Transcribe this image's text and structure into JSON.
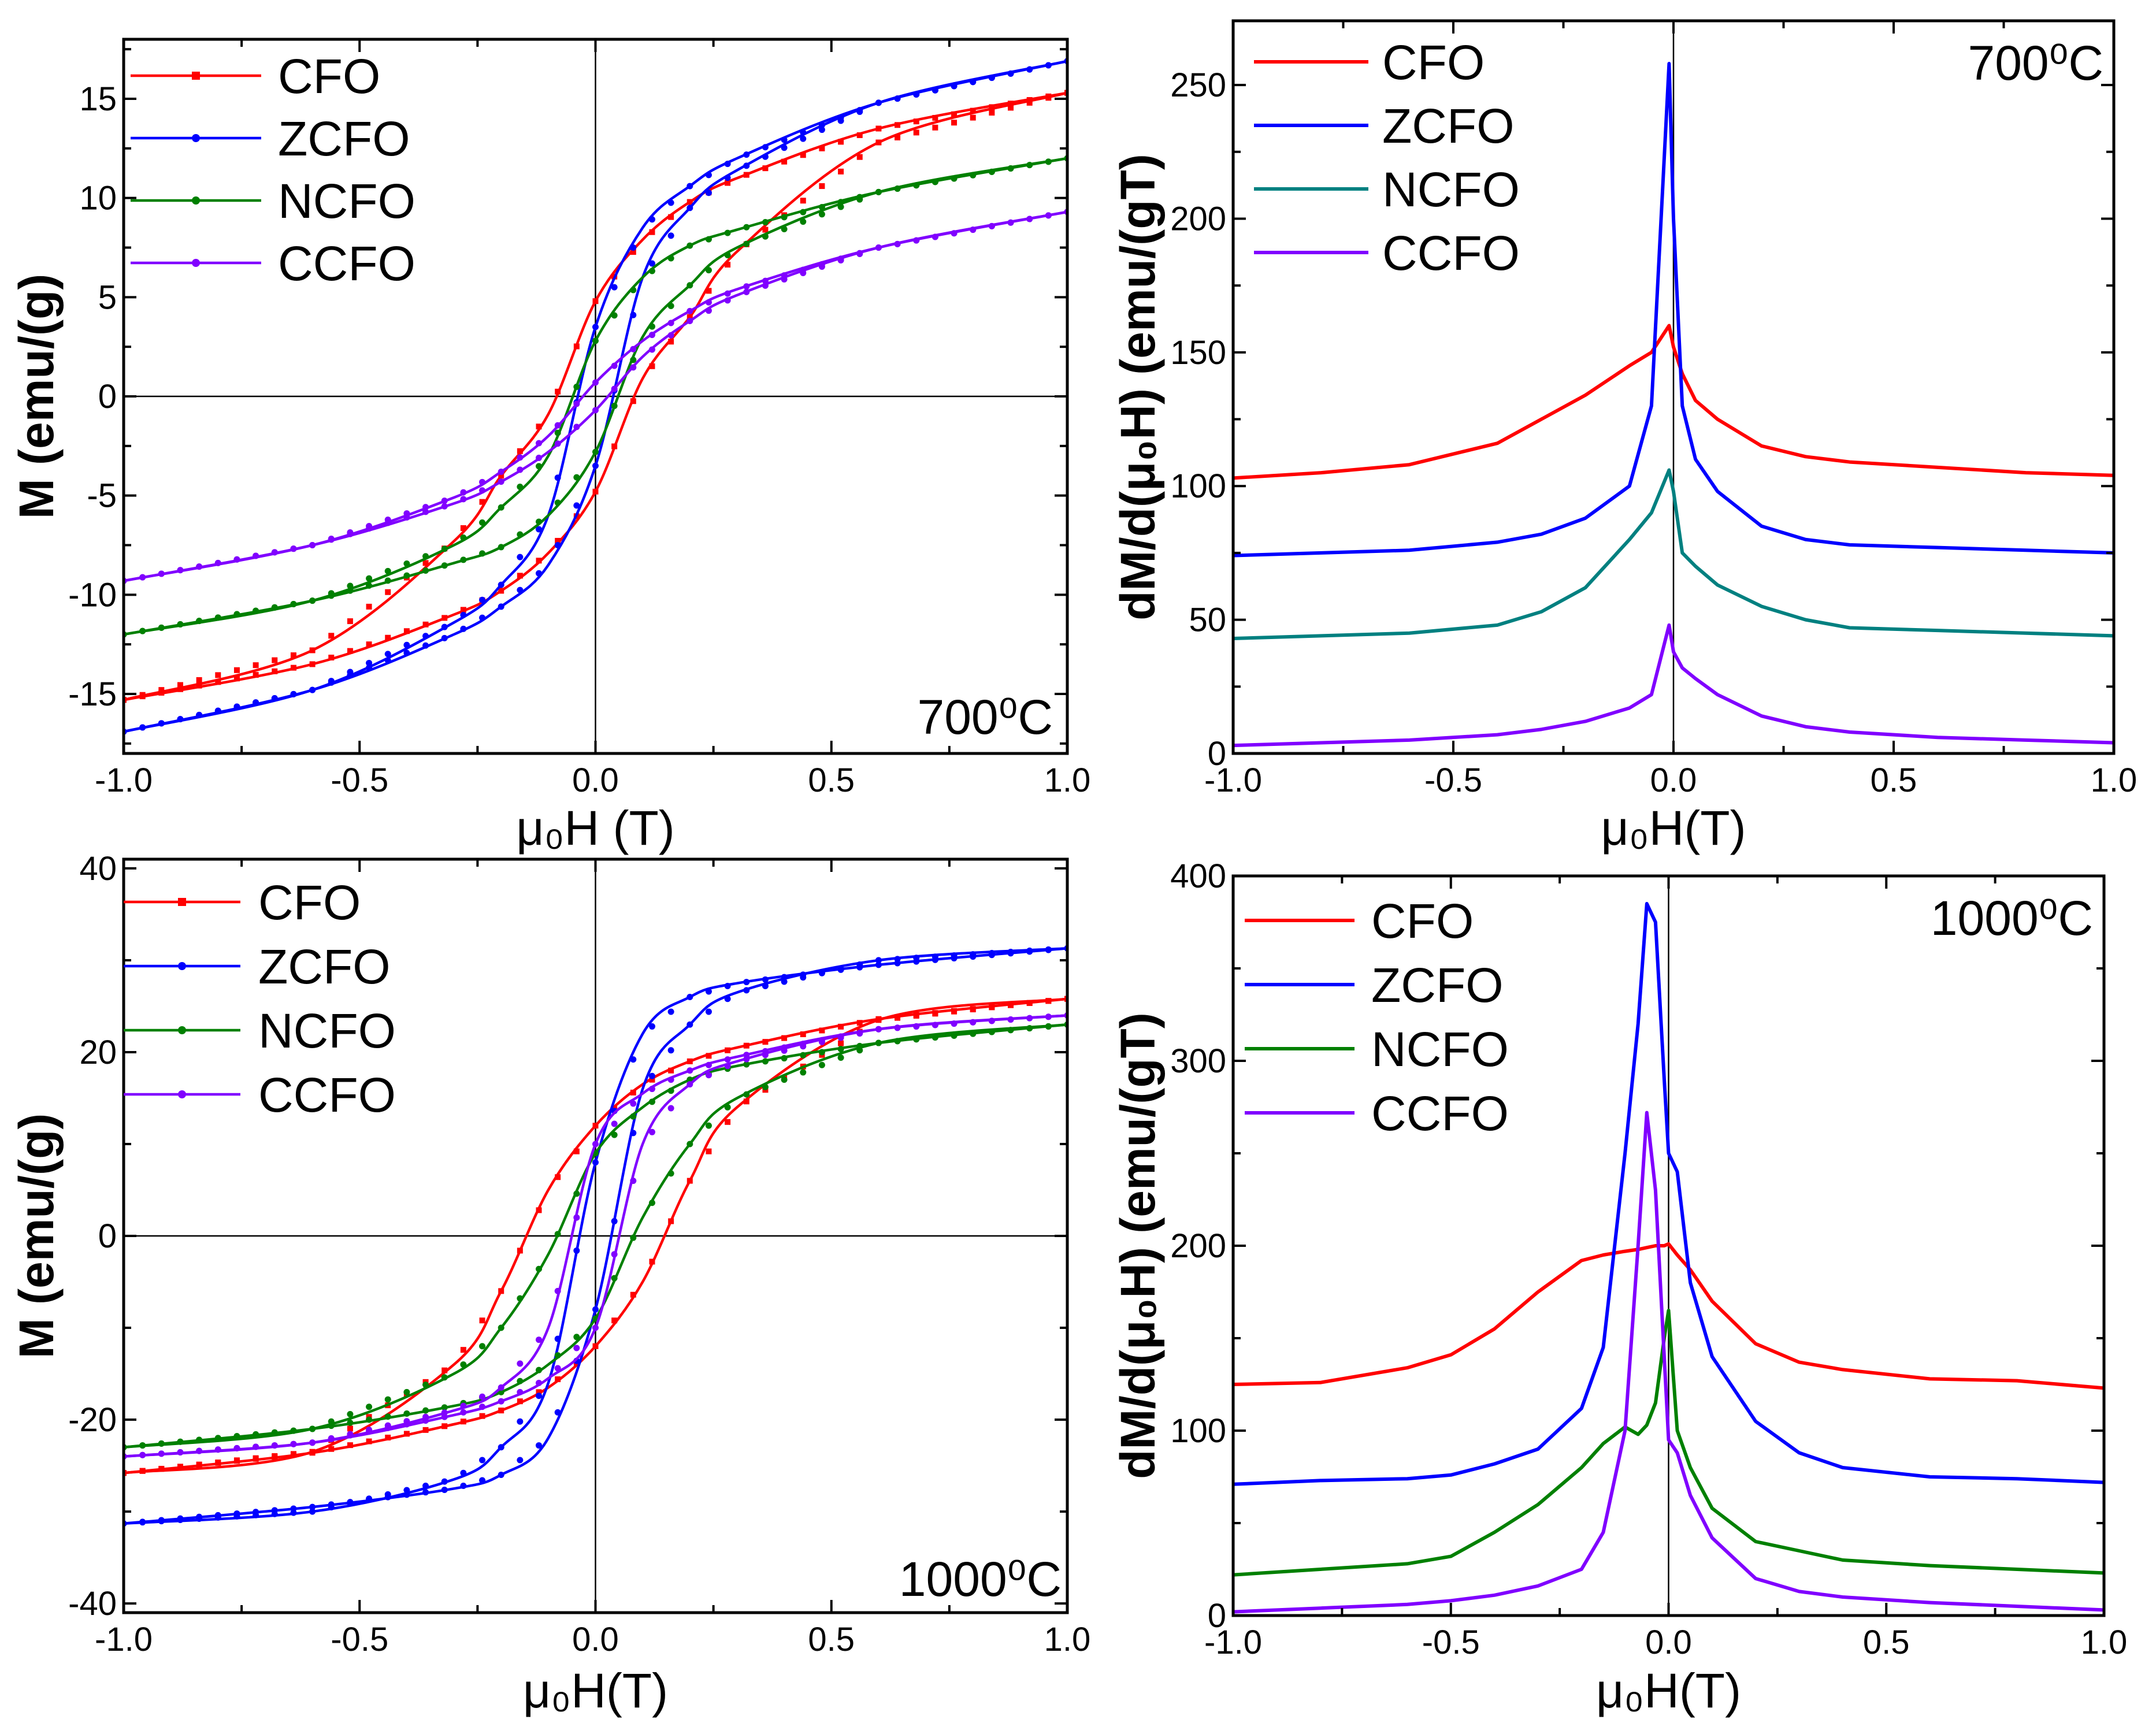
{
  "chart_data": [
    {
      "type": "line",
      "panel": "top-left",
      "kind": "hysteresis",
      "annotation": "700⁰C",
      "xlabel": "μ₀H (T)",
      "ylabel": "M (emu/(g)",
      "xlim": [
        -1.0,
        1.0
      ],
      "ylim": [
        -18,
        18
      ],
      "xticks": [
        -1.0,
        -0.5,
        0.0,
        0.5,
        1.0
      ],
      "xtick_labels": [
        "-1.0",
        "-0.5",
        "0.0",
        "0.5",
        "1.0"
      ],
      "yticks": [
        -15,
        -10,
        -5,
        0,
        5,
        10,
        15
      ],
      "ytick_labels": [
        "-15",
        "-10",
        "-5",
        "0",
        "5",
        "10",
        "15"
      ],
      "legend_position": "top-left",
      "x": [
        -1,
        -0.6,
        -0.3,
        -0.2,
        -0.1,
        0,
        0.1,
        0.2,
        0.3,
        0.6,
        1
      ],
      "branch_note": "descending branch values; ascending branch is the symmetric inverse",
      "series": [
        {
          "name": "CFO",
          "color": "#ff0000",
          "marker": "square",
          "values": [
            -15.3,
            -12.8,
            -7.3,
            -4.0,
            -0.9,
            4.8,
            7.9,
            9.8,
            11.0,
            13.5,
            15.3
          ]
        },
        {
          "name": "ZCFO",
          "color": "#0000ff",
          "marker": "circle",
          "values": [
            -16.9,
            -14.8,
            -11.4,
            -9.5,
            -6.0,
            3.5,
            8.5,
            10.6,
            12.0,
            14.8,
            16.9
          ]
        },
        {
          "name": "NCFO",
          "color": "#008000",
          "marker": "circle",
          "values": [
            -12.0,
            -10.3,
            -7.5,
            -5.6,
            -3.0,
            2.8,
            6.0,
            7.6,
            8.4,
            10.3,
            12.0
          ]
        },
        {
          "name": "CCFO",
          "color": "#8000ff",
          "marker": "circle",
          "values": [
            -9.3,
            -7.5,
            -5.1,
            -3.8,
            -2.0,
            0.7,
            2.8,
            4.3,
            5.4,
            7.5,
            9.3
          ]
        }
      ]
    },
    {
      "type": "line",
      "panel": "top-right",
      "kind": "derivative",
      "annotation": "700⁰C",
      "xlabel": "μ₀H(T)",
      "ylabel": "dM/d(μ₀H) (emu/(gT)",
      "xlim": [
        -1.0,
        1.0
      ],
      "ylim": [
        0,
        274
      ],
      "xticks": [
        -1.0,
        -0.5,
        0.0,
        0.5,
        1.0
      ],
      "xtick_labels": [
        "-1.0",
        "-0.5",
        "0.0",
        "0.5",
        "1.0"
      ],
      "yticks": [
        0,
        50,
        100,
        150,
        200,
        250
      ],
      "ytick_labels": [
        "0",
        "50",
        "100",
        "150",
        "200",
        "250"
      ],
      "legend_position": "top-left",
      "x": [
        -1,
        -0.8,
        -0.6,
        -0.4,
        -0.3,
        -0.2,
        -0.1,
        -0.05,
        -0.01,
        0,
        0.02,
        0.05,
        0.1,
        0.2,
        0.3,
        0.4,
        0.6,
        0.8,
        1
      ],
      "series": [
        {
          "name": "CFO",
          "color": "#ff0000",
          "values": [
            103,
            105,
            108,
            116,
            125,
            134,
            145,
            150,
            160,
            152,
            142,
            132,
            125,
            115,
            111,
            109,
            107,
            105,
            104
          ]
        },
        {
          "name": "ZCFO",
          "color": "#0000ff",
          "values": [
            74,
            75,
            76,
            79,
            82,
            88,
            100,
            130,
            258,
            200,
            130,
            110,
            98,
            85,
            80,
            78,
            77,
            76,
            75
          ]
        },
        {
          "name": "NCFO",
          "color": "#008080",
          "values": [
            43,
            44,
            45,
            48,
            53,
            62,
            80,
            90,
            106,
            98,
            75,
            70,
            63,
            55,
            50,
            47,
            46,
            45,
            44
          ]
        },
        {
          "name": "CCFO",
          "color": "#8000ff",
          "values": [
            3,
            4,
            5,
            7,
            9,
            12,
            17,
            22,
            48,
            38,
            32,
            28,
            22,
            14,
            10,
            8,
            6,
            5,
            4
          ]
        }
      ]
    },
    {
      "type": "line",
      "panel": "bottom-left",
      "kind": "hysteresis",
      "annotation": "1000⁰C",
      "xlabel": "μ₀H(T)",
      "ylabel": "M (emu/(g)",
      "xlim": [
        -1.0,
        1.0
      ],
      "ylim": [
        -41,
        41
      ],
      "xticks": [
        -1.0,
        -0.5,
        0.0,
        0.5,
        1.0
      ],
      "xtick_labels": [
        "-1.0",
        "-0.5",
        "0.0",
        "0.5",
        "1.0"
      ],
      "yticks": [
        -40,
        -20,
        0,
        20,
        40
      ],
      "ytick_labels": [
        "-40",
        "-20",
        "0",
        "20",
        "40"
      ],
      "legend_position": "top-left",
      "x": [
        -1,
        -0.6,
        -0.3,
        -0.2,
        -0.1,
        0,
        0.1,
        0.2,
        0.3,
        0.6,
        1
      ],
      "branch_note": "descending branch values; ascending branch is the symmetric inverse",
      "series": [
        {
          "name": "CFO",
          "color": "#ff0000",
          "marker": "square",
          "values": [
            -25.8,
            -23.5,
            -14.0,
            -6.0,
            5.0,
            12.0,
            16.5,
            19.0,
            20.5,
            23.6,
            25.8
          ]
        },
        {
          "name": "ZCFO",
          "color": "#0000ff",
          "marker": "circle",
          "values": [
            -31.3,
            -30.0,
            -26.5,
            -23.0,
            -16.0,
            8.0,
            22.0,
            26.0,
            27.5,
            29.5,
            31.3
          ]
        },
        {
          "name": "NCFO",
          "color": "#008000",
          "marker": "circle",
          "values": [
            -23.0,
            -21.0,
            -15.0,
            -10.0,
            -2.0,
            9.0,
            14.0,
            17.0,
            18.5,
            21.0,
            23.0
          ]
        },
        {
          "name": "CCFO",
          "color": "#8000ff",
          "marker": "circle",
          "values": [
            -24.0,
            -22.5,
            -19.0,
            -16.5,
            -10.0,
            10.0,
            15.5,
            18.0,
            19.5,
            22.5,
            24.0
          ]
        }
      ]
    },
    {
      "type": "line",
      "panel": "bottom-right",
      "kind": "derivative",
      "annotation": "1000⁰C",
      "xlabel": "μ₀H(T)",
      "ylabel": "dM/d(μ₀H) (emu/(gT)",
      "xlim": [
        -1.0,
        1.0
      ],
      "ylim": [
        0,
        400
      ],
      "xticks": [
        -1.0,
        -0.5,
        0.0,
        0.5,
        1.0
      ],
      "xtick_labels": [
        "-1.0",
        "-0.5",
        "0.0",
        "0.5",
        "1.0"
      ],
      "yticks": [
        0,
        100,
        200,
        300,
        400
      ],
      "ytick_labels": [
        "0",
        "100",
        "200",
        "300",
        "400"
      ],
      "legend_position": "top-left",
      "x": [
        -1,
        -0.8,
        -0.6,
        -0.5,
        -0.4,
        -0.3,
        -0.2,
        -0.15,
        -0.1,
        -0.07,
        -0.05,
        -0.03,
        -0.01,
        0,
        0.02,
        0.05,
        0.1,
        0.2,
        0.3,
        0.4,
        0.6,
        0.8,
        1
      ],
      "series": [
        {
          "name": "CFO",
          "color": "#ff0000",
          "values": [
            125,
            126,
            134,
            141,
            155,
            175,
            192,
            195,
            197,
            198,
            199,
            200,
            200,
            201,
            195,
            187,
            170,
            147,
            137,
            133,
            128,
            127,
            123
          ]
        },
        {
          "name": "ZCFO",
          "color": "#0000ff",
          "values": [
            71,
            73,
            74,
            76,
            82,
            90,
            112,
            145,
            250,
            320,
            385,
            375,
            290,
            250,
            240,
            180,
            140,
            105,
            88,
            80,
            75,
            74,
            72
          ]
        },
        {
          "name": "NCFO",
          "color": "#008000",
          "values": [
            22,
            25,
            28,
            32,
            45,
            60,
            80,
            93,
            102,
            98,
            103,
            115,
            150,
            165,
            100,
            80,
            58,
            40,
            35,
            30,
            27,
            25,
            23
          ]
        },
        {
          "name": "CCFO",
          "color": "#8000ff",
          "values": [
            2,
            4,
            6,
            8,
            11,
            16,
            25,
            45,
            100,
            200,
            272,
            230,
            140,
            95,
            88,
            65,
            42,
            20,
            13,
            10,
            7,
            5,
            3
          ]
        }
      ]
    }
  ]
}
